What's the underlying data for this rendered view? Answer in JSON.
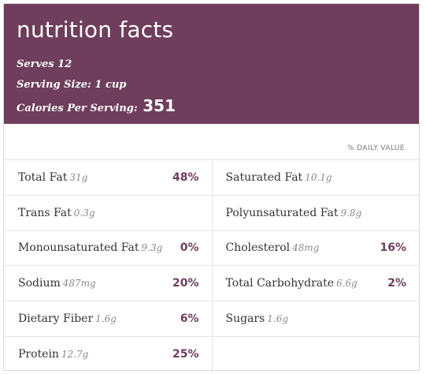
{
  "header": {
    "title": "nutrition facts",
    "serves": "Serves 12",
    "serving_size": "Serving Size: 1 cup",
    "calories_label": "Calories Per Serving:",
    "calories_value": "351"
  },
  "daily_value_label": "% DAILY VALUE",
  "rows": [
    {
      "left": {
        "name": "Total Fat",
        "amount": "31g",
        "pct": "48%"
      },
      "right": {
        "name": "Saturated Fat",
        "amount": "10.1g",
        "pct": ""
      }
    },
    {
      "left": {
        "name": "Trans Fat",
        "amount": "0.3g",
        "pct": ""
      },
      "right": {
        "name": "Polyunsaturated Fat",
        "amount": "9.8g",
        "pct": ""
      }
    },
    {
      "left": {
        "name": "Monounsaturated Fat",
        "amount": "9.3g",
        "pct": "0%"
      },
      "right": {
        "name": "Cholesterol",
        "amount": "48mg",
        "pct": "16%"
      }
    },
    {
      "left": {
        "name": "Sodium",
        "amount": "487mg",
        "pct": "20%"
      },
      "right": {
        "name": "Total Carbohydrate",
        "amount": "6.6g",
        "pct": "2%"
      }
    },
    {
      "left": {
        "name": "Dietary Fiber",
        "amount": "1.6g",
        "pct": "6%"
      },
      "right": {
        "name": "Sugars",
        "amount": "1.6g",
        "pct": ""
      }
    },
    {
      "left": {
        "name": "Protein",
        "amount": "12.7g",
        "pct": "25%"
      },
      "right": {
        "name": "",
        "amount": "",
        "pct": ""
      }
    }
  ],
  "colors": {
    "header_bg": "#6e3e5c",
    "percent_text": "#6e3e5c",
    "divider": "#e5e5e5"
  }
}
